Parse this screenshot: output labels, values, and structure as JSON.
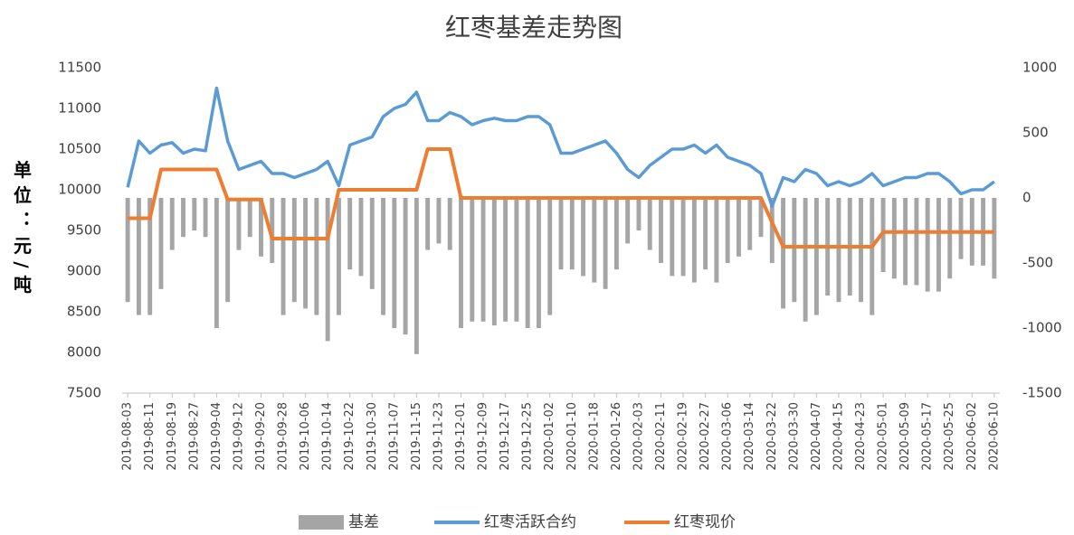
{
  "chart_data": {
    "type": "combo",
    "title": "红枣基差走势图",
    "y_label": "单位：元/吨",
    "categories": [
      "2019-08-03",
      null,
      "2019-08-11",
      null,
      "2019-08-19",
      null,
      "2019-08-27",
      null,
      "2019-09-04",
      null,
      "2019-09-12",
      null,
      "2019-09-20",
      null,
      "2019-09-28",
      null,
      "2019-10-06",
      null,
      "2019-10-14",
      null,
      "2019-10-22",
      null,
      "2019-10-30",
      null,
      "2019-11-07",
      null,
      "2019-11-15",
      null,
      "2019-11-23",
      null,
      "2019-12-01",
      null,
      "2019-12-09",
      null,
      "2019-12-17",
      null,
      "2019-12-25",
      null,
      "2020-01-02",
      null,
      "2020-01-10",
      null,
      "2020-01-18",
      null,
      "2020-01-26",
      null,
      "2020-02-03",
      null,
      "2020-02-11",
      null,
      "2020-02-19",
      null,
      "2020-02-27",
      null,
      "2020-03-06",
      null,
      "2020-03-14",
      null,
      "2020-03-22",
      null,
      "2020-03-30",
      null,
      "2020-04-07",
      null,
      "2020-04-15",
      null,
      "2020-04-23",
      null,
      "2020-05-01",
      null,
      "2020-05-09",
      null,
      "2020-05-17",
      null,
      "2020-05-25",
      null,
      "2020-06-02",
      null,
      "2020-06-10"
    ],
    "series": [
      {
        "name": "基差",
        "type": "bar",
        "axis": "y2",
        "color": "#a5a5a5",
        "values": [
          -800,
          -900,
          -900,
          -700,
          -400,
          -300,
          -250,
          -300,
          -1000,
          -800,
          -400,
          -300,
          -450,
          -500,
          -900,
          -800,
          -850,
          -900,
          -1100,
          -900,
          -550,
          -600,
          -700,
          -900,
          -1000,
          -1050,
          -1200,
          -400,
          -350,
          -400,
          -1000,
          -950,
          -950,
          -980,
          -950,
          -950,
          -1000,
          -1000,
          -900,
          -550,
          -550,
          -600,
          -650,
          -700,
          -550,
          -350,
          -250,
          -400,
          -500,
          -600,
          -600,
          -650,
          -550,
          -650,
          -500,
          -450,
          -400,
          -300,
          -500,
          -850,
          -800,
          -950,
          -900,
          -750,
          -800,
          -750,
          -800,
          -900,
          -570,
          -620,
          -670,
          -670,
          -720,
          -720,
          -620,
          -470,
          -520,
          -520,
          -620
        ]
      },
      {
        "name": "红枣活跃合约",
        "type": "line",
        "color": "#5b9bd5",
        "values": [
          10030,
          10600,
          10450,
          10550,
          10580,
          10450,
          10500,
          10480,
          11250,
          10600,
          10250,
          10300,
          10350,
          10200,
          10200,
          10150,
          10200,
          10250,
          10350,
          10050,
          10550,
          10600,
          10650,
          10900,
          11000,
          11050,
          11200,
          10850,
          10850,
          10950,
          10900,
          10800,
          10850,
          10880,
          10850,
          10850,
          10900,
          10900,
          10800,
          10450,
          10450,
          10500,
          10550,
          10600,
          10450,
          10250,
          10150,
          10300,
          10400,
          10500,
          10500,
          10550,
          10450,
          10550,
          10400,
          10350,
          10300,
          10200,
          9800,
          10150,
          10100,
          10250,
          10200,
          10050,
          10100,
          10050,
          10100,
          10200,
          10050,
          10100,
          10150,
          10150,
          10200,
          10200,
          10100,
          9950,
          10000,
          10000,
          10100
        ]
      },
      {
        "name": "红枣现价",
        "type": "line",
        "color": "#ed7d31",
        "values": [
          9650,
          9650,
          9650,
          10250,
          10250,
          10250,
          10250,
          10250,
          10250,
          9880,
          9880,
          9880,
          9880,
          9400,
          9400,
          9400,
          9400,
          9400,
          9400,
          10000,
          10000,
          10000,
          10000,
          10000,
          10000,
          10000,
          10000,
          10500,
          10500,
          10500,
          9900,
          9900,
          9900,
          9900,
          9900,
          9900,
          9900,
          9900,
          9900,
          9900,
          9900,
          9900,
          9900,
          9900,
          9900,
          9900,
          9900,
          9900,
          9900,
          9900,
          9900,
          9900,
          9900,
          9900,
          9900,
          9900,
          9900,
          9900,
          9600,
          9300,
          9300,
          9300,
          9300,
          9300,
          9300,
          9300,
          9300,
          9300,
          9480,
          9480,
          9480,
          9480,
          9480,
          9480,
          9480,
          9480,
          9480,
          9480,
          9480
        ]
      }
    ],
    "ylim": [
      7500,
      11500
    ],
    "yticks": [
      7500,
      8000,
      8500,
      9000,
      9500,
      10000,
      10500,
      11000,
      11500
    ],
    "y2lim": [
      -1500,
      1000
    ],
    "y2ticks": [
      -1500,
      -1000,
      -500,
      0,
      500,
      1000
    ]
  }
}
